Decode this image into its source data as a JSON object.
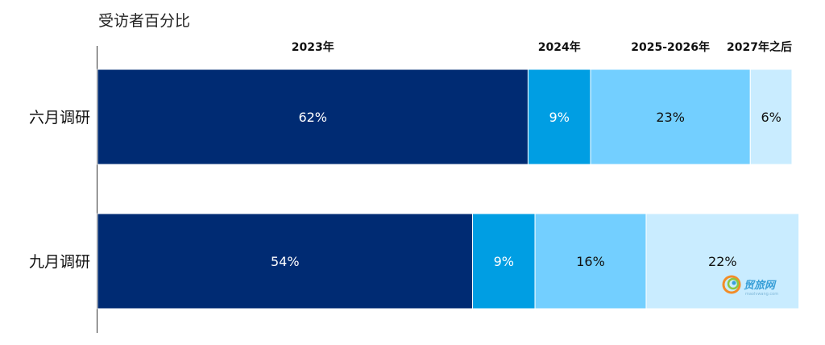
{
  "chart_data": {
    "type": "bar",
    "orientation": "horizontal",
    "stacked": true,
    "normalized": true,
    "ylabel": "受访者百分比",
    "categories": [
      "六月调研",
      "九月调研"
    ],
    "series": [
      {
        "name": "2023年",
        "values": [
          62,
          54
        ],
        "labels": [
          "62%",
          "54%"
        ],
        "color": "#002b73",
        "label_color": "#ffffff"
      },
      {
        "name": "2024年",
        "values": [
          9,
          9
        ],
        "labels": [
          "9%",
          "9%"
        ],
        "color": "#009ee3",
        "label_color": "#ffffff"
      },
      {
        "name": "2025-2026年",
        "values": [
          23,
          16
        ],
        "labels": [
          "23%",
          "16%"
        ],
        "color": "#73cfff",
        "label_color": "#111111"
      },
      {
        "name": "2027年之后",
        "values": [
          6,
          22
        ],
        "labels": [
          "6%",
          "22%"
        ],
        "color": "#c9ecff",
        "label_color": "#111111"
      }
    ],
    "xlim": [
      0,
      100
    ],
    "legend_placement": "top, above the first bar",
    "grid": false
  },
  "watermark": {
    "text": "贸旅网",
    "subtext": "maolvwang.com",
    "colors": [
      "#f28c28",
      "#8dc63f",
      "#3aa0d8"
    ]
  }
}
